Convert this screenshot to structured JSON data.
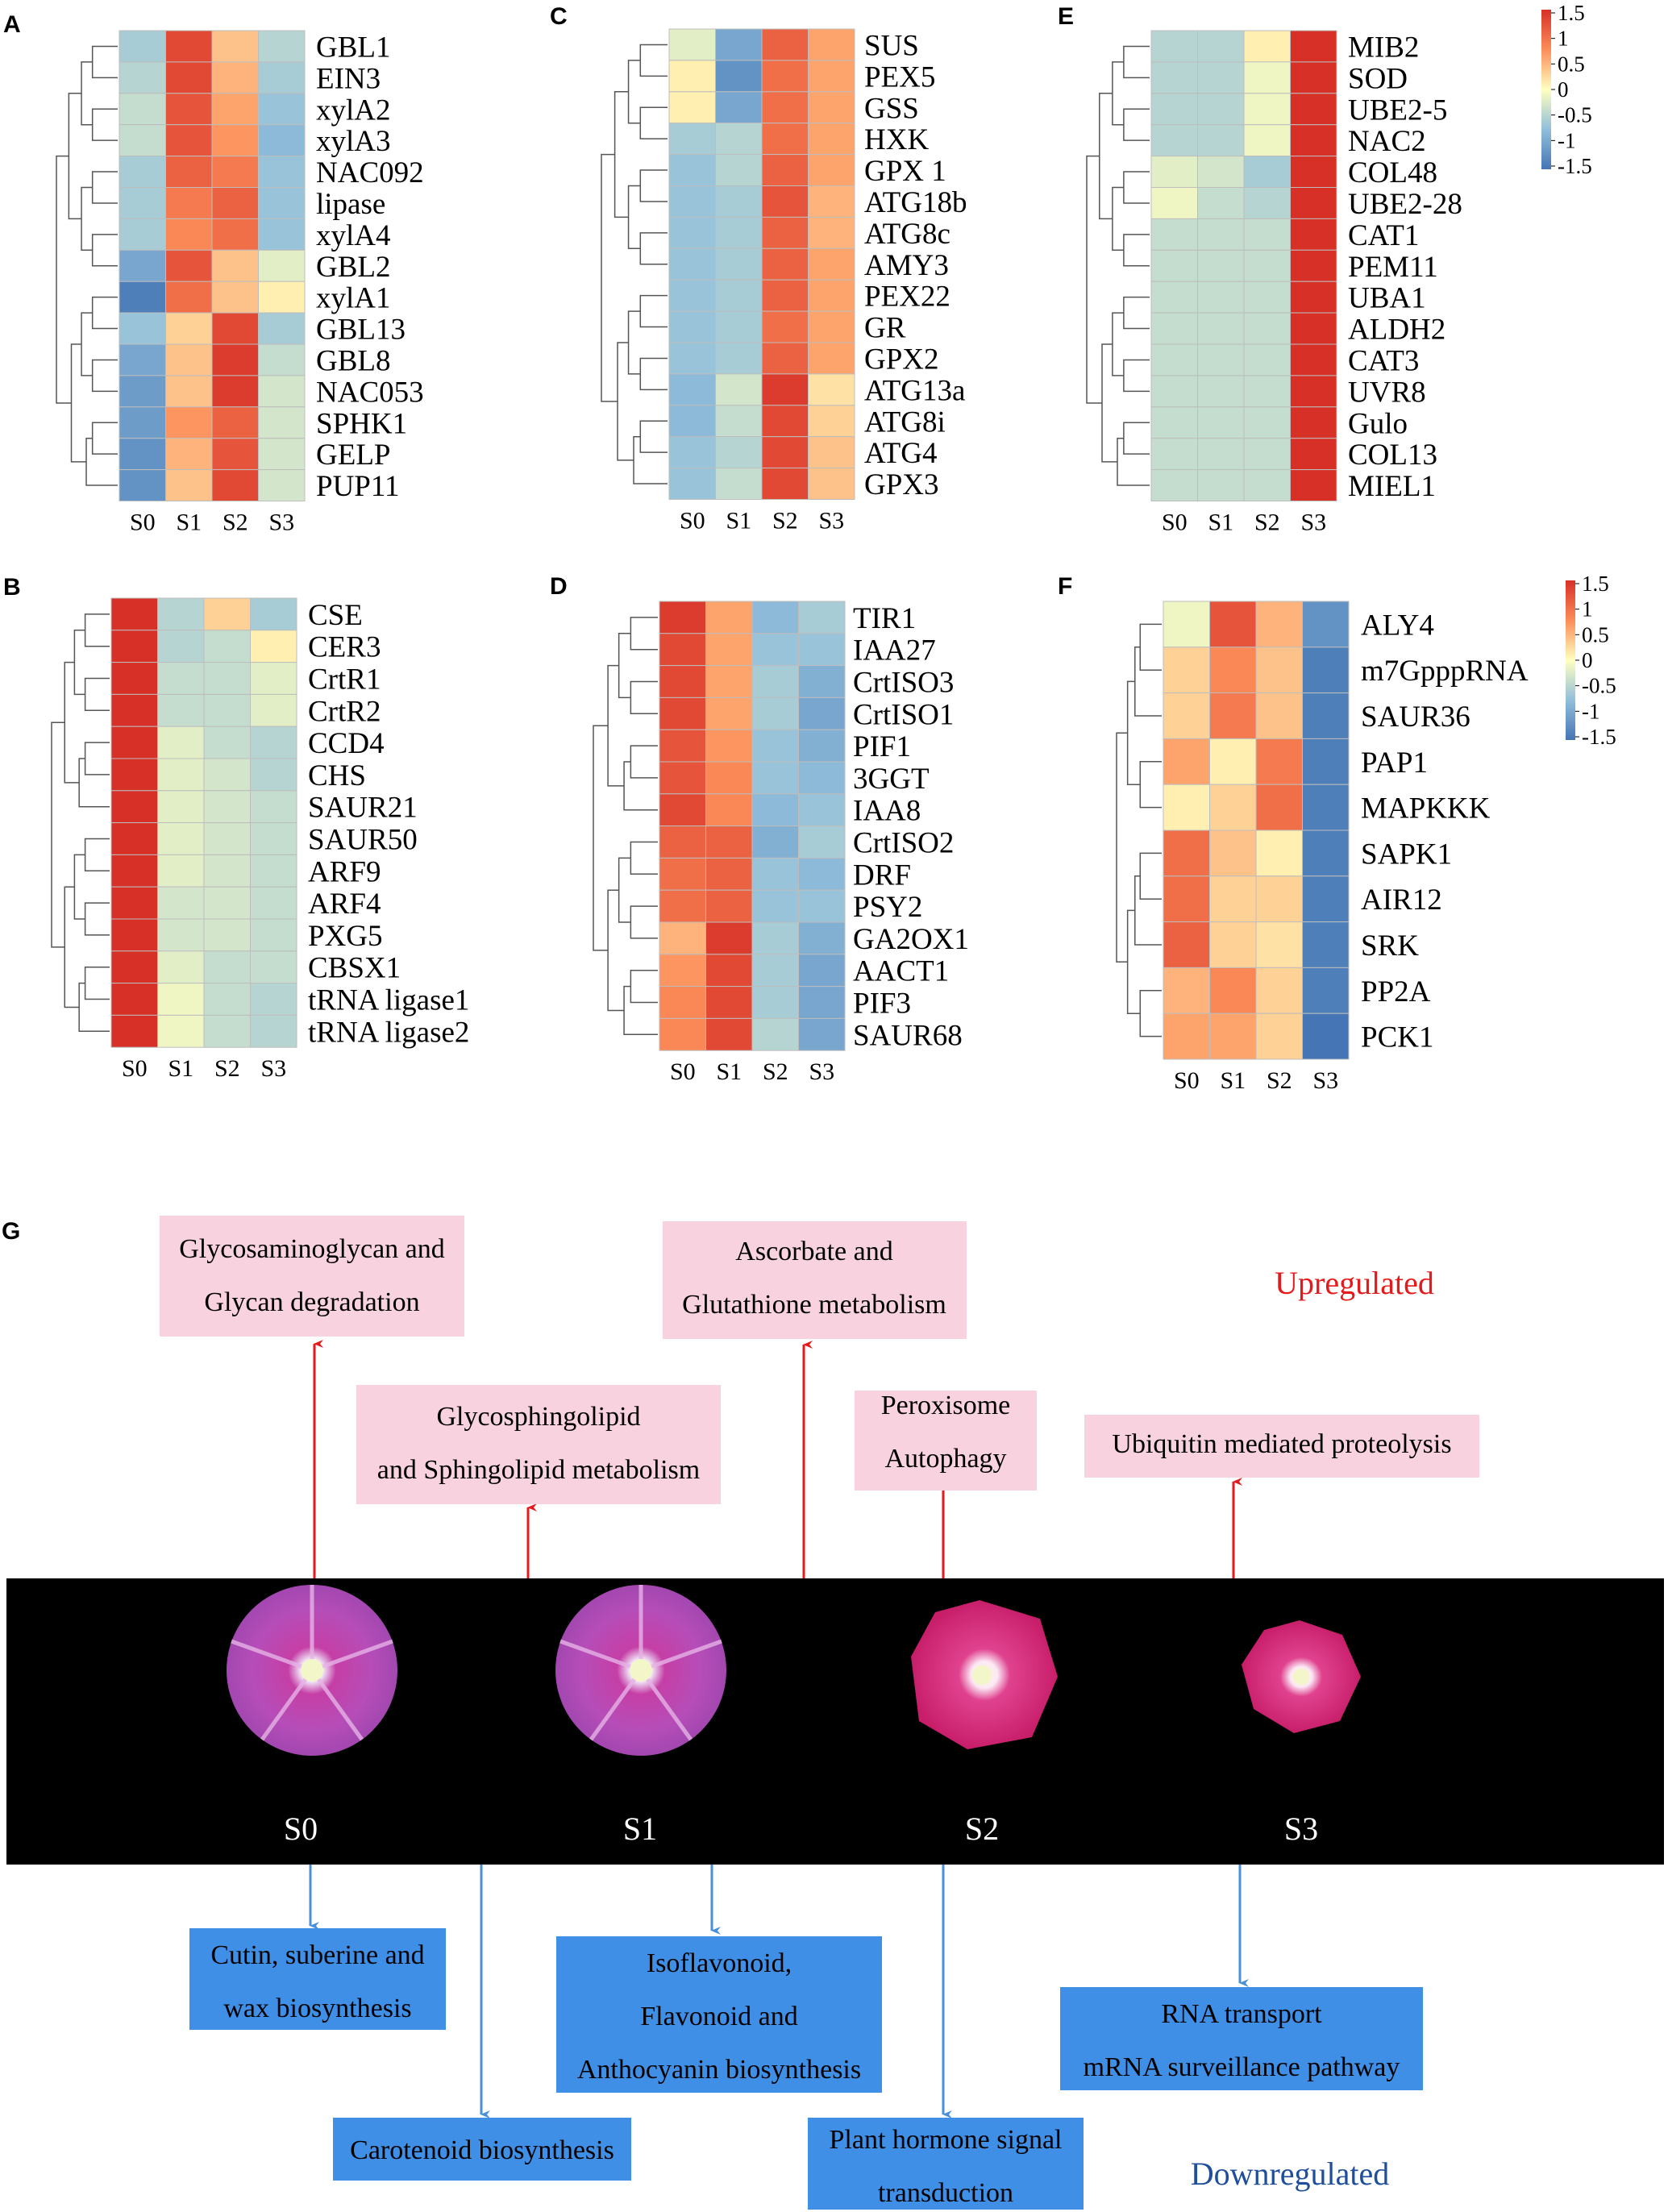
{
  "figure": {
    "legend": {
      "ticks": [
        "1.5",
        "1",
        "0.5",
        "0",
        "-0.5",
        "-1",
        "-1.5"
      ]
    },
    "colors": {
      "low": "#4575b4",
      "mid": "#ffffbf",
      "high": "#d73027",
      "up_arrow": "#e41a1c",
      "down_arrow": "#4a90d9",
      "up_box": "#f8d2df",
      "down_box": "#3f8fe6",
      "up_text": "#e41a1c",
      "down_text": "#1f4e9c"
    }
  },
  "chart_data": [
    {
      "type": "heatmap",
      "panel": "A",
      "columns": [
        "S0",
        "S1",
        "S2",
        "S3"
      ],
      "rows": [
        "GBL1",
        "EIN3",
        "xylA2",
        "xylA3",
        "NAC092",
        "lipase",
        "xylA4",
        "GBL2",
        "xylA1",
        "GBL13",
        "GBL8",
        "NAC053",
        "SPHK1",
        "GELP",
        "PUP11"
      ],
      "values": [
        [
          -0.6,
          1.3,
          0.4,
          -0.5
        ],
        [
          -0.5,
          1.3,
          0.5,
          -0.6
        ],
        [
          -0.4,
          1.2,
          0.6,
          -0.7
        ],
        [
          -0.4,
          1.2,
          0.7,
          -0.8
        ],
        [
          -0.6,
          1.1,
          0.9,
          -0.7
        ],
        [
          -0.6,
          0.9,
          1.1,
          -0.7
        ],
        [
          -0.6,
          0.8,
          1.0,
          -0.7
        ],
        [
          -1.0,
          1.2,
          0.4,
          -0.2
        ],
        [
          -1.4,
          1.0,
          0.4,
          0.1
        ],
        [
          -0.7,
          0.3,
          1.3,
          -0.6
        ],
        [
          -1.0,
          0.4,
          1.4,
          -0.4
        ],
        [
          -1.1,
          0.4,
          1.4,
          -0.3
        ],
        [
          -1.1,
          0.7,
          1.1,
          -0.3
        ],
        [
          -1.2,
          0.5,
          1.2,
          -0.3
        ],
        [
          -1.2,
          0.4,
          1.3,
          -0.3
        ]
      ]
    },
    {
      "type": "heatmap",
      "panel": "B",
      "columns": [
        "S0",
        "S1",
        "S2",
        "S3"
      ],
      "rows": [
        "CSE",
        "CER3",
        "CrtR1",
        "CrtR2",
        "CCD4",
        "CHS",
        "SAUR21",
        "SAUR50",
        "ARF9",
        "ARF4",
        "PXG5",
        "CBSX1",
        "tRNA ligase1",
        "tRNA ligase2"
      ],
      "values": [
        [
          1.5,
          -0.5,
          0.3,
          -0.6
        ],
        [
          1.5,
          -0.5,
          -0.4,
          0.1
        ],
        [
          1.5,
          -0.4,
          -0.4,
          -0.2
        ],
        [
          1.5,
          -0.4,
          -0.4,
          -0.2
        ],
        [
          1.5,
          -0.2,
          -0.4,
          -0.5
        ],
        [
          1.5,
          -0.2,
          -0.3,
          -0.5
        ],
        [
          1.5,
          -0.2,
          -0.3,
          -0.4
        ],
        [
          1.5,
          -0.2,
          -0.3,
          -0.4
        ],
        [
          1.5,
          -0.2,
          -0.3,
          -0.4
        ],
        [
          1.5,
          -0.3,
          -0.3,
          -0.4
        ],
        [
          1.5,
          -0.3,
          -0.3,
          -0.4
        ],
        [
          1.5,
          -0.2,
          -0.4,
          -0.4
        ],
        [
          1.5,
          -0.1,
          -0.4,
          -0.5
        ],
        [
          1.5,
          -0.1,
          -0.4,
          -0.5
        ]
      ]
    },
    {
      "type": "heatmap",
      "panel": "C",
      "columns": [
        "S0",
        "S1",
        "S2",
        "S3"
      ],
      "rows": [
        "SUS",
        "PEX5",
        "GSS",
        "HXK",
        "GPX 1",
        "ATG18b",
        "ATG8c",
        "AMY3",
        "PEX22",
        "GR",
        "GPX2",
        "ATG13a",
        "ATG8i",
        "ATG4",
        "GPX3"
      ],
      "values": [
        [
          -0.2,
          -1.0,
          1.1,
          0.6
        ],
        [
          0.1,
          -1.2,
          1.0,
          0.6
        ],
        [
          0.1,
          -1.0,
          1.0,
          0.6
        ],
        [
          -0.6,
          -0.5,
          1.0,
          0.6
        ],
        [
          -0.7,
          -0.5,
          1.1,
          0.6
        ],
        [
          -0.7,
          -0.6,
          1.2,
          0.5
        ],
        [
          -0.7,
          -0.6,
          1.1,
          0.5
        ],
        [
          -0.7,
          -0.6,
          1.1,
          0.6
        ],
        [
          -0.7,
          -0.6,
          1.1,
          0.6
        ],
        [
          -0.7,
          -0.6,
          1.0,
          0.6
        ],
        [
          -0.7,
          -0.6,
          1.1,
          0.6
        ],
        [
          -0.8,
          -0.3,
          1.4,
          0.2
        ],
        [
          -0.8,
          -0.4,
          1.3,
          0.3
        ],
        [
          -0.7,
          -0.5,
          1.3,
          0.4
        ],
        [
          -0.7,
          -0.4,
          1.3,
          0.4
        ]
      ]
    },
    {
      "type": "heatmap",
      "panel": "D",
      "columns": [
        "S0",
        "S1",
        "S2",
        "S3"
      ],
      "rows": [
        "TIR1",
        "IAA27",
        "CrtISO3",
        "CrtISO1",
        "PIF1",
        "3GGT",
        "IAA8",
        "CrtISO2",
        "DRF",
        "PSY2",
        "GA2OX1",
        "AACT1",
        "PIF3",
        "SAUR68"
      ],
      "values": [
        [
          1.4,
          0.6,
          -0.8,
          -0.6
        ],
        [
          1.3,
          0.6,
          -0.7,
          -0.7
        ],
        [
          1.3,
          0.6,
          -0.6,
          -0.9
        ],
        [
          1.3,
          0.6,
          -0.6,
          -1.0
        ],
        [
          1.2,
          0.7,
          -0.7,
          -0.9
        ],
        [
          1.2,
          0.8,
          -0.7,
          -0.8
        ],
        [
          1.3,
          0.8,
          -0.8,
          -0.7
        ],
        [
          1.1,
          1.1,
          -0.9,
          -0.6
        ],
        [
          1.0,
          1.1,
          -0.7,
          -0.8
        ],
        [
          1.0,
          1.1,
          -0.7,
          -0.7
        ],
        [
          0.5,
          1.4,
          -0.6,
          -0.9
        ],
        [
          0.7,
          1.3,
          -0.6,
          -1.0
        ],
        [
          0.8,
          1.3,
          -0.6,
          -1.0
        ],
        [
          0.8,
          1.3,
          -0.5,
          -1.0
        ]
      ]
    },
    {
      "type": "heatmap",
      "panel": "E",
      "columns": [
        "S0",
        "S1",
        "S2",
        "S3"
      ],
      "rows": [
        "MIB2",
        "SOD",
        "UBE2-5",
        "NAC2",
        "COL48",
        "UBE2-28",
        "CAT1",
        "PEM11",
        "UBA1",
        "ALDH2",
        "CAT3",
        "UVR8",
        "Gulo",
        "COL13",
        "MIEL1"
      ],
      "values": [
        [
          -0.5,
          -0.5,
          0.1,
          1.5
        ],
        [
          -0.5,
          -0.5,
          -0.1,
          1.5
        ],
        [
          -0.5,
          -0.5,
          -0.1,
          1.5
        ],
        [
          -0.5,
          -0.5,
          -0.1,
          1.5
        ],
        [
          -0.2,
          -0.3,
          -0.6,
          1.5
        ],
        [
          -0.1,
          -0.4,
          -0.5,
          1.5
        ],
        [
          -0.4,
          -0.4,
          -0.4,
          1.5
        ],
        [
          -0.4,
          -0.4,
          -0.4,
          1.5
        ],
        [
          -0.4,
          -0.4,
          -0.4,
          1.5
        ],
        [
          -0.4,
          -0.4,
          -0.4,
          1.5
        ],
        [
          -0.4,
          -0.4,
          -0.4,
          1.5
        ],
        [
          -0.4,
          -0.4,
          -0.4,
          1.5
        ],
        [
          -0.4,
          -0.4,
          -0.4,
          1.5
        ],
        [
          -0.4,
          -0.4,
          -0.4,
          1.5
        ],
        [
          -0.4,
          -0.4,
          -0.4,
          1.5
        ]
      ]
    },
    {
      "type": "heatmap",
      "panel": "F",
      "columns": [
        "S0",
        "S1",
        "S2",
        "S3"
      ],
      "rows": [
        "ALY4",
        "m7GpppRNA",
        "SAUR36",
        "PAP1",
        "MAPKKK",
        "SAPK1",
        "AIR12",
        "SRK",
        "PP2A",
        "PCK1"
      ],
      "values": [
        [
          -0.1,
          1.2,
          0.5,
          -1.2
        ],
        [
          0.3,
          0.8,
          0.4,
          -1.4
        ],
        [
          0.3,
          0.9,
          0.4,
          -1.4
        ],
        [
          0.6,
          0.1,
          0.9,
          -1.4
        ],
        [
          0.1,
          0.3,
          1.0,
          -1.4
        ],
        [
          1.0,
          0.4,
          0.1,
          -1.4
        ],
        [
          1.0,
          0.3,
          0.3,
          -1.4
        ],
        [
          1.1,
          0.3,
          0.2,
          -1.4
        ],
        [
          0.5,
          0.8,
          0.3,
          -1.4
        ],
        [
          0.6,
          0.6,
          0.3,
          -1.5
        ]
      ]
    }
  ],
  "panel_g": {
    "letter": "G",
    "upregulated_label": "Upregulated",
    "downregulated_label": "Downregulated",
    "stages": [
      "S0",
      "S1",
      "S2",
      "S3"
    ],
    "up_boxes": [
      {
        "lines": [
          "Glycosaminoglycan and",
          "Glycan degradation"
        ]
      },
      {
        "lines": [
          "Glycosphingolipid",
          "and Sphingolipid metabolism"
        ]
      },
      {
        "lines": [
          "Ascorbate and",
          "Glutathione metabolism"
        ]
      },
      {
        "lines": [
          "Peroxisome",
          "Autophagy"
        ]
      },
      {
        "lines": [
          "Ubiquitin mediated proteolysis"
        ]
      }
    ],
    "down_boxes": [
      {
        "lines": [
          "Cutin, suberine and",
          "wax biosynthesis"
        ]
      },
      {
        "lines": [
          "Carotenoid biosynthesis"
        ]
      },
      {
        "lines": [
          "Isoflavonoid,",
          "Flavonoid and",
          "Anthocyanin biosynthesis"
        ]
      },
      {
        "lines": [
          "Plant hormone signal",
          "transduction"
        ]
      },
      {
        "lines": [
          "RNA transport",
          "mRNA surveillance pathway"
        ]
      }
    ]
  }
}
